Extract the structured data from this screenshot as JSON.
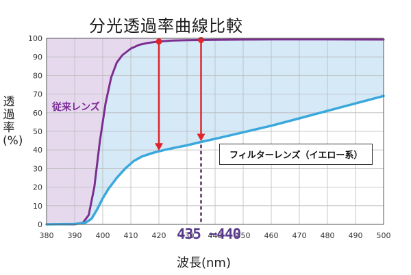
{
  "chart_data": {
    "type": "line",
    "title": "分光透過率曲線比較",
    "xlabel": "波長(nm)",
    "ylabel": "透過率(%)",
    "xlim": [
      380,
      500
    ],
    "ylim": [
      0,
      100
    ],
    "x_ticks": [
      "380",
      "390",
      "400",
      "410",
      "420",
      "430",
      "440",
      "450",
      "460",
      "470",
      "480",
      "490",
      "500"
    ],
    "y_ticks": [
      "0",
      "10",
      "20",
      "30",
      "40",
      "50",
      "60",
      "70",
      "80",
      "90",
      "100"
    ],
    "grid": true,
    "series": [
      {
        "name": "従来レンズ",
        "color": "#7b2e8e",
        "x": [
          380,
          390,
          393,
          395,
          397,
          399,
          401,
          403,
          405,
          407,
          410,
          413,
          416,
          420,
          425,
          430,
          440,
          450,
          460,
          480,
          500
        ],
        "y": [
          0,
          0,
          1,
          5,
          20,
          45,
          65,
          79,
          87,
          91,
          94.5,
          96.5,
          97.5,
          98.3,
          98.8,
          99,
          99.2,
          99.3,
          99.4,
          99.4,
          99.3
        ]
      },
      {
        "name": "フィルターレンズ（イエロー系）",
        "color": "#3aa8dc",
        "x": [
          380,
          390,
          394,
          396,
          398,
          400,
          402,
          405,
          408,
          411,
          414,
          418,
          422,
          426,
          430,
          435,
          440,
          450,
          460,
          470,
          480,
          490,
          500
        ],
        "y": [
          0,
          0.2,
          1,
          3,
          8,
          14,
          19,
          25,
          30,
          34,
          36.5,
          38.5,
          40,
          41.3,
          42.5,
          44.3,
          46,
          49.5,
          53,
          57,
          61,
          65,
          69
        ]
      }
    ],
    "annotations": {
      "wavelength_range": "435 −440",
      "arrows_at_x": [
        420,
        435
      ],
      "dashed_line_x": 435
    }
  }
}
